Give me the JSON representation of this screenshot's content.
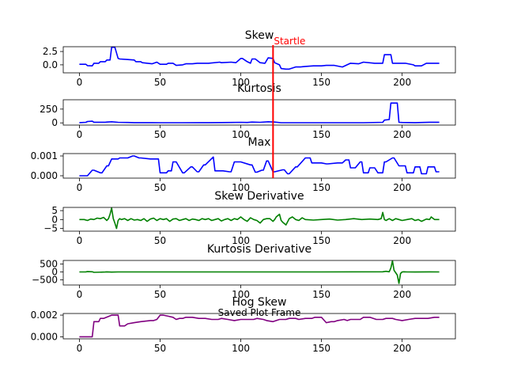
{
  "figure": {
    "caption": "Saved Plot Frame",
    "annotation": {
      "text": "Startle",
      "x": 120,
      "color": "#ff0000"
    }
  },
  "chart_data": [
    {
      "type": "line",
      "title": "Skew",
      "color": "#0000ff",
      "xlim": [
        -10,
        233
      ],
      "ylim": [
        -1.5,
        3.4
      ],
      "xticks": [
        0,
        50,
        100,
        150,
        200
      ],
      "yticks": [
        2.5,
        0.0
      ],
      "ytick_labels": [
        "2.5",
        "0.0"
      ],
      "x": [
        0,
        4,
        5,
        8,
        9,
        12,
        13,
        16,
        17,
        19,
        20,
        22,
        24,
        25,
        30,
        34,
        35,
        38,
        39,
        45,
        48,
        50,
        54,
        55,
        58,
        60,
        64,
        66,
        70,
        73,
        80,
        87,
        88,
        94,
        97,
        100,
        101,
        104,
        106,
        107,
        109,
        112,
        115,
        117,
        120,
        121,
        124,
        125,
        128,
        130,
        134,
        137,
        140,
        145,
        150,
        153,
        158,
        163,
        168,
        173,
        176,
        183,
        188,
        189,
        193,
        194,
        195,
        197,
        202,
        207,
        208,
        212,
        215,
        217,
        223
      ],
      "y": [
        0.1,
        0.1,
        -0.15,
        -0.2,
        0.3,
        0.3,
        0.6,
        0.6,
        0.9,
        0.9,
        3.3,
        3.3,
        1.2,
        1.1,
        1.0,
        0.9,
        0.6,
        0.6,
        0.4,
        0.2,
        0.5,
        0.1,
        0.1,
        0.3,
        0.3,
        -0.1,
        0.0,
        0.2,
        0.2,
        0.3,
        0.3,
        0.5,
        0.4,
        0.5,
        0.4,
        1.2,
        1.2,
        0.6,
        0.3,
        1.1,
        1.1,
        0.4,
        0.3,
        1.3,
        1.2,
        0.4,
        0.0,
        -0.7,
        -0.8,
        -0.8,
        -0.4,
        -0.4,
        -0.3,
        -0.2,
        -0.2,
        -0.1,
        -0.1,
        -0.4,
        0.3,
        0.2,
        0.5,
        0.3,
        0.3,
        1.9,
        1.9,
        0.3,
        0.3,
        0.3,
        0.3,
        0.0,
        -0.2,
        -0.2,
        0.3,
        0.3,
        0.3
      ]
    },
    {
      "type": "line",
      "title": "Kurtosis",
      "color": "#0000ff",
      "xlim": [
        -10,
        233
      ],
      "ylim": [
        -40,
        420
      ],
      "xticks": [
        0,
        50,
        100,
        150,
        200
      ],
      "yticks": [
        250,
        0
      ],
      "ytick_labels": [
        "250",
        "0"
      ],
      "x": [
        0,
        4,
        5,
        8,
        9,
        16,
        17,
        20,
        24,
        30,
        34,
        45,
        50,
        55,
        64,
        80,
        88,
        94,
        100,
        104,
        107,
        112,
        117,
        121,
        125,
        130,
        140,
        150,
        163,
        176,
        188,
        189,
        192,
        193,
        197,
        198,
        200,
        208,
        217,
        223
      ],
      "y": [
        5,
        10,
        25,
        30,
        12,
        12,
        15,
        20,
        10,
        8,
        5,
        5,
        3,
        3,
        3,
        4,
        6,
        8,
        10,
        8,
        14,
        10,
        20,
        15,
        3,
        3,
        3,
        3,
        3,
        3,
        10,
        50,
        60,
        360,
        360,
        10,
        8,
        5,
        12,
        12
      ]
    },
    {
      "type": "line",
      "title": "Max",
      "color": "#0000ff",
      "xlim": [
        -10,
        233
      ],
      "ylim": [
        -0.00012,
        0.00112
      ],
      "xticks": [
        0,
        50,
        100,
        150,
        200
      ],
      "yticks": [
        0.001,
        0.0
      ],
      "ytick_labels": [
        "0.001",
        "0.000"
      ],
      "x": [
        0,
        4,
        5,
        8,
        9,
        13,
        14,
        17,
        18,
        20,
        24,
        25,
        30,
        33,
        34,
        37,
        38,
        44,
        45,
        49,
        50,
        54,
        55,
        57,
        58,
        60,
        64,
        65,
        69,
        70,
        73,
        74,
        77,
        78,
        83,
        84,
        88,
        89,
        93,
        94,
        96,
        97,
        99,
        100,
        106,
        107,
        109,
        110,
        113,
        114,
        116,
        117,
        120,
        121,
        126,
        127,
        129,
        130,
        134,
        135,
        140,
        143,
        144,
        150,
        153,
        154,
        160,
        163,
        165,
        167,
        168,
        171,
        174,
        175,
        176,
        179,
        180,
        183,
        185,
        188,
        189,
        190,
        194,
        195,
        198,
        202,
        203,
        207,
        208,
        211,
        212,
        215,
        216,
        220,
        221,
        223
      ],
      "y": [
        0.0,
        0.0,
        0.0,
        0.00028,
        0.00028,
        0.00015,
        0.00015,
        0.0005,
        0.0005,
        0.00085,
        0.00085,
        0.0009,
        0.0009,
        0.001,
        0.001,
        0.0009,
        0.0009,
        0.00085,
        0.00085,
        0.00085,
        0.00015,
        0.00015,
        0.00025,
        0.00025,
        0.0007,
        0.0007,
        0.00015,
        0.00015,
        0.00045,
        0.00045,
        0.0002,
        0.0002,
        0.00055,
        0.00055,
        0.00095,
        0.00025,
        0.00025,
        0.00025,
        0.0002,
        0.0002,
        0.0007,
        0.0007,
        0.0007,
        0.0007,
        0.00055,
        0.00055,
        0.00018,
        0.00018,
        0.00028,
        0.00028,
        0.00075,
        0.00075,
        0.0002,
        0.0002,
        0.0003,
        0.0003,
        0.0001,
        0.0001,
        0.00045,
        0.00045,
        0.0009,
        0.0009,
        0.00065,
        0.00065,
        0.0006,
        0.0006,
        0.00065,
        0.00065,
        0.0008,
        0.0008,
        0.0004,
        0.0004,
        0.0007,
        0.0007,
        0.00015,
        0.00015,
        0.0004,
        0.0004,
        0.00015,
        0.00015,
        0.0007,
        0.0007,
        0.0009,
        0.0009,
        0.0005,
        0.0005,
        0.00015,
        0.00015,
        0.00045,
        0.00045,
        0.0001,
        0.0001,
        0.00045,
        0.00045,
        0.0002,
        0.0002
      ]
    },
    {
      "type": "line",
      "title": "Skew Derivative",
      "color": "#008000",
      "xlim": [
        -10,
        233
      ],
      "ylim": [
        -6.5,
        6.8
      ],
      "xticks": [
        0,
        50,
        100,
        150,
        200
      ],
      "yticks": [
        5,
        0,
        -5
      ],
      "ytick_labels": [
        "5",
        "0",
        "−5"
      ],
      "x": [
        0,
        3,
        5,
        7,
        9,
        11,
        13,
        15,
        17,
        18,
        19,
        20,
        21,
        22,
        23,
        24,
        25,
        26,
        28,
        30,
        32,
        34,
        36,
        38,
        40,
        42,
        44,
        46,
        48,
        50,
        52,
        54,
        56,
        58,
        60,
        62,
        64,
        66,
        68,
        70,
        72,
        74,
        76,
        78,
        80,
        82,
        84,
        86,
        88,
        90,
        92,
        94,
        96,
        98,
        100,
        102,
        104,
        106,
        108,
        110,
        112,
        114,
        116,
        118,
        120,
        121,
        122,
        124,
        125,
        126,
        128,
        130,
        132,
        134,
        136,
        138,
        140,
        145,
        150,
        155,
        160,
        165,
        170,
        175,
        180,
        185,
        187,
        188,
        189,
        190,
        192,
        194,
        196,
        198,
        200,
        203,
        206,
        208,
        210,
        212,
        215,
        217,
        218,
        220,
        223
      ],
      "y": [
        0.0,
        0.0,
        -0.5,
        0.3,
        0.0,
        0.8,
        0.5,
        1.2,
        -0.5,
        0.5,
        3.0,
        6.5,
        0.5,
        -2.0,
        -5.0,
        -0.5,
        0.5,
        0.0,
        0.5,
        -0.5,
        0.5,
        -0.3,
        0.0,
        -0.5,
        0.5,
        -1.0,
        0.3,
        0.8,
        -0.5,
        0.5,
        0.0,
        0.5,
        -1.0,
        0.3,
        0.5,
        -0.5,
        0.0,
        0.5,
        -0.5,
        0.3,
        0.0,
        -0.5,
        0.5,
        0.0,
        0.5,
        -0.5,
        0.0,
        0.5,
        -0.8,
        0.0,
        0.5,
        -0.5,
        0.5,
        0.0,
        1.5,
        0.0,
        -1.0,
        1.0,
        0.0,
        -0.5,
        -2.0,
        0.0,
        0.5,
        0.5,
        -1.0,
        0.0,
        1.5,
        3.0,
        -0.5,
        -1.5,
        -3.0,
        0.5,
        1.5,
        0.0,
        -0.5,
        1.0,
        0.0,
        -0.3,
        0.0,
        0.3,
        -0.3,
        0.0,
        0.5,
        0.0,
        0.3,
        0.0,
        0.5,
        4.0,
        0.0,
        -0.5,
        0.5,
        -0.5,
        0.5,
        0.0,
        -0.5,
        0.0,
        0.5,
        -0.5,
        0.0,
        -1.0,
        0.3,
        0.0,
        1.5,
        0.0,
        0.0
      ]
    },
    {
      "type": "line",
      "title": "Kurtosis Derivative",
      "color": "#008000",
      "xlim": [
        -10,
        233
      ],
      "ylim": [
        -820,
        720
      ],
      "xticks": [
        0,
        50,
        100,
        150,
        200
      ],
      "yticks": [
        500,
        0,
        -500
      ],
      "ytick_labels": [
        "500",
        "0",
        "−500"
      ],
      "x": [
        0,
        4,
        5,
        8,
        9,
        16,
        17,
        20,
        24,
        30,
        50,
        100,
        150,
        188,
        190,
        192,
        193,
        194,
        195,
        196,
        197,
        198,
        199,
        200,
        201,
        203,
        208,
        217,
        223
      ],
      "y": [
        0,
        5,
        20,
        10,
        -25,
        -5,
        5,
        -10,
        0,
        0,
        0,
        0,
        0,
        10,
        40,
        10,
        250,
        700,
        100,
        -50,
        -200,
        -720,
        -100,
        0,
        10,
        0,
        -5,
        5,
        0
      ]
    },
    {
      "type": "line",
      "title": "Hog Skew",
      "color": "#800080",
      "xlim": [
        -10,
        233
      ],
      "ylim": [
        -0.00019,
        0.00215
      ],
      "xticks": [
        0,
        50,
        100,
        150,
        200
      ],
      "yticks": [
        0.002,
        0.0
      ],
      "ytick_labels": [
        "0.002",
        "0.000"
      ],
      "x": [
        0,
        3,
        4,
        5,
        8,
        9,
        12,
        13,
        15,
        20,
        23,
        24,
        25,
        28,
        30,
        34,
        38,
        44,
        46,
        48,
        50,
        52,
        55,
        58,
        60,
        62,
        64,
        66,
        68,
        70,
        74,
        78,
        82,
        86,
        88,
        92,
        96,
        100,
        104,
        108,
        110,
        114,
        116,
        120,
        124,
        128,
        130,
        134,
        136,
        140,
        144,
        146,
        150,
        153,
        156,
        158,
        160,
        164,
        166,
        168,
        170,
        174,
        176,
        180,
        184,
        188,
        190,
        194,
        196,
        200,
        204,
        208,
        212,
        216,
        220,
        223
      ],
      "y": [
        0.0,
        0.0,
        0.0,
        0.0,
        0.0,
        0.0014,
        0.0014,
        0.0017,
        0.0017,
        0.002,
        0.002,
        0.002,
        0.001,
        0.001,
        0.0012,
        0.0013,
        0.0014,
        0.0015,
        0.0015,
        0.0016,
        0.002,
        0.002,
        0.0019,
        0.0018,
        0.0016,
        0.0017,
        0.0017,
        0.0018,
        0.0018,
        0.0018,
        0.0017,
        0.0017,
        0.0016,
        0.0016,
        0.0017,
        0.0016,
        0.0015,
        0.0016,
        0.0016,
        0.0016,
        0.0017,
        0.0016,
        0.0015,
        0.0014,
        0.0016,
        0.0016,
        0.0017,
        0.0017,
        0.0016,
        0.0017,
        0.0017,
        0.0018,
        0.0018,
        0.0013,
        0.0014,
        0.0014,
        0.0015,
        0.0016,
        0.0015,
        0.0016,
        0.0016,
        0.0016,
        0.0018,
        0.0018,
        0.0016,
        0.0016,
        0.0017,
        0.0017,
        0.0016,
        0.0015,
        0.0016,
        0.0017,
        0.0017,
        0.0017,
        0.0018,
        0.0018
      ]
    }
  ]
}
